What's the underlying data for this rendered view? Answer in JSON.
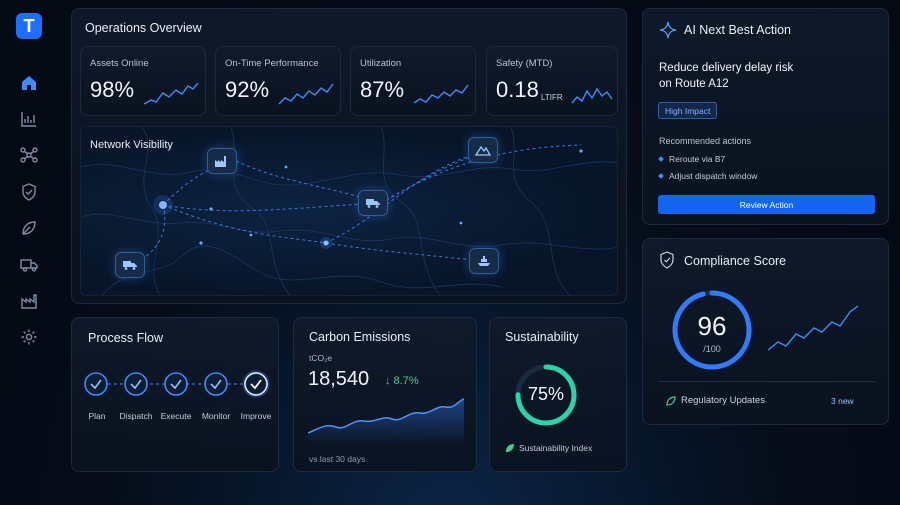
{
  "brand": {
    "logo_letter": "T"
  },
  "sidebar": {
    "items": [
      {
        "icon": "home-icon"
      },
      {
        "icon": "analytics-icon"
      },
      {
        "icon": "network-icon"
      },
      {
        "icon": "shield-icon"
      },
      {
        "icon": "leaf-icon"
      },
      {
        "icon": "truck-icon"
      },
      {
        "icon": "factory-icon"
      },
      {
        "icon": "gear-icon"
      }
    ]
  },
  "overview": {
    "title": "Operations Overview",
    "kpis": [
      {
        "label": "Assets Online",
        "value": "98%",
        "unit": ""
      },
      {
        "label": "On-Time Performance",
        "value": "92%",
        "unit": ""
      },
      {
        "label": "Utilization",
        "value": "87%",
        "unit": ""
      },
      {
        "label": "Safety (MTD)",
        "value": "0.18",
        "unit": "LTIFR"
      }
    ],
    "map_title": "Network Visibility"
  },
  "process": {
    "title": "Process Flow",
    "steps": [
      "Plan",
      "Dispatch",
      "Execute",
      "Monitor",
      "Improve"
    ]
  },
  "carbon": {
    "title": "Carbon Emissions",
    "unit": "tCO₂e",
    "value": "18,540",
    "change": "↓ 8.7%",
    "footnote": "vs last 30 days"
  },
  "sustainability": {
    "title": "Sustainability",
    "percent_text": "75%",
    "percent": 75,
    "index_label": "Sustainability Index"
  },
  "ai": {
    "title": "AI Next Best Action",
    "headline_line1": "Reduce delivery delay risk",
    "headline_line2": "on Route A12",
    "badge": "High Impact",
    "recommended_label": "Recommended actions",
    "actions": [
      "Reroute via B7",
      "Adjust dispatch window"
    ],
    "button": "Review Action"
  },
  "compliance": {
    "title": "Compliance Score",
    "score": "96",
    "score_max": "/100",
    "score_fraction": 0.96,
    "updates_label": "Regulatory Updates",
    "updates_count": "3 new"
  },
  "colors": {
    "accent": "#1e6fff",
    "positive": "#3ecf8e",
    "teal": "#2bd4a8",
    "line": "#3d8bff"
  }
}
